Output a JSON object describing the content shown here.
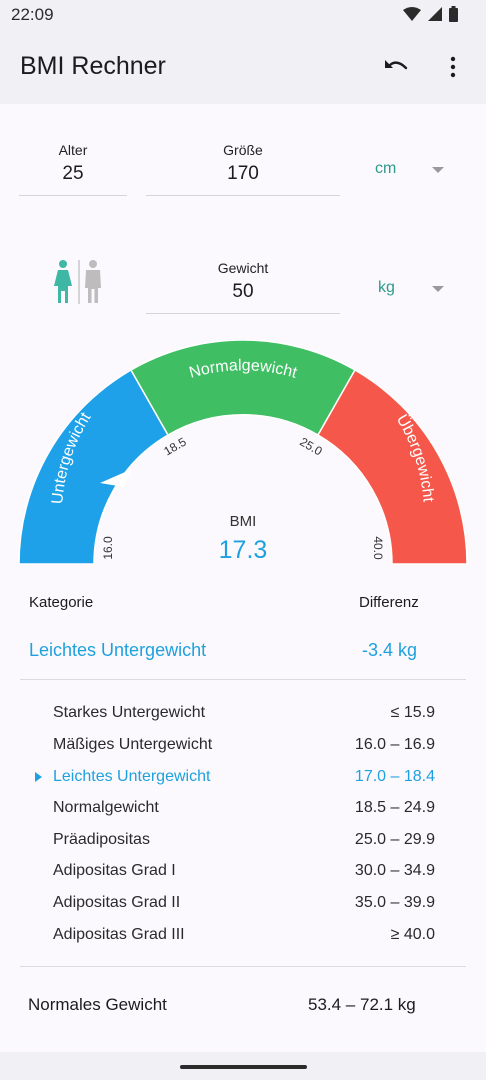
{
  "status": {
    "time": "22:09"
  },
  "toolbar": {
    "title": "BMI Rechner"
  },
  "inputs": {
    "age": {
      "label": "Alter",
      "value": "25"
    },
    "height": {
      "label": "Größe",
      "value": "170",
      "unit": "cm"
    },
    "weight": {
      "label": "Gewicht",
      "value": "50",
      "unit": "kg"
    }
  },
  "gender": {
    "selected": "female"
  },
  "gauge": {
    "zones": [
      {
        "label": "Untergewicht",
        "color": "#1ea1e8"
      },
      {
        "label": "Normalgewicht",
        "color": "#3fbe63"
      },
      {
        "label": "Übergewicht",
        "color": "#f5574a"
      }
    ],
    "ticks": [
      "16.0",
      "18.5",
      "25.0",
      "40.0"
    ],
    "bmi_label": "BMI",
    "bmi_value": "17.3"
  },
  "summary": {
    "category_header": "Kategorie",
    "difference_header": "Differenz",
    "current_category": "Leichtes Untergewicht",
    "current_difference": "-3.4 kg"
  },
  "categories": [
    {
      "name": "Starkes Untergewicht",
      "range": "≤ 15.9"
    },
    {
      "name": "Mäßiges Untergewicht",
      "range": "16.0 – 16.9"
    },
    {
      "name": "Leichtes Untergewicht",
      "range": "17.0 – 18.4",
      "active": true
    },
    {
      "name": "Normalgewicht",
      "range": "18.5 – 24.9"
    },
    {
      "name": "Präadipositas",
      "range": "25.0 – 29.9"
    },
    {
      "name": "Adipositas Grad I",
      "range": "30.0 – 34.9"
    },
    {
      "name": "Adipositas Grad II",
      "range": "35.0 – 39.9"
    },
    {
      "name": "Adipositas Grad III",
      "range": "≥ 40.0"
    }
  ],
  "normal_weight": {
    "label": "Normales Gewicht",
    "value": "53.4 – 72.1 kg"
  },
  "colors": {
    "accent": "#1ea1de",
    "unit": "#2e9a8a",
    "female": "#3fb7a5",
    "male": "#bdbdbd"
  }
}
